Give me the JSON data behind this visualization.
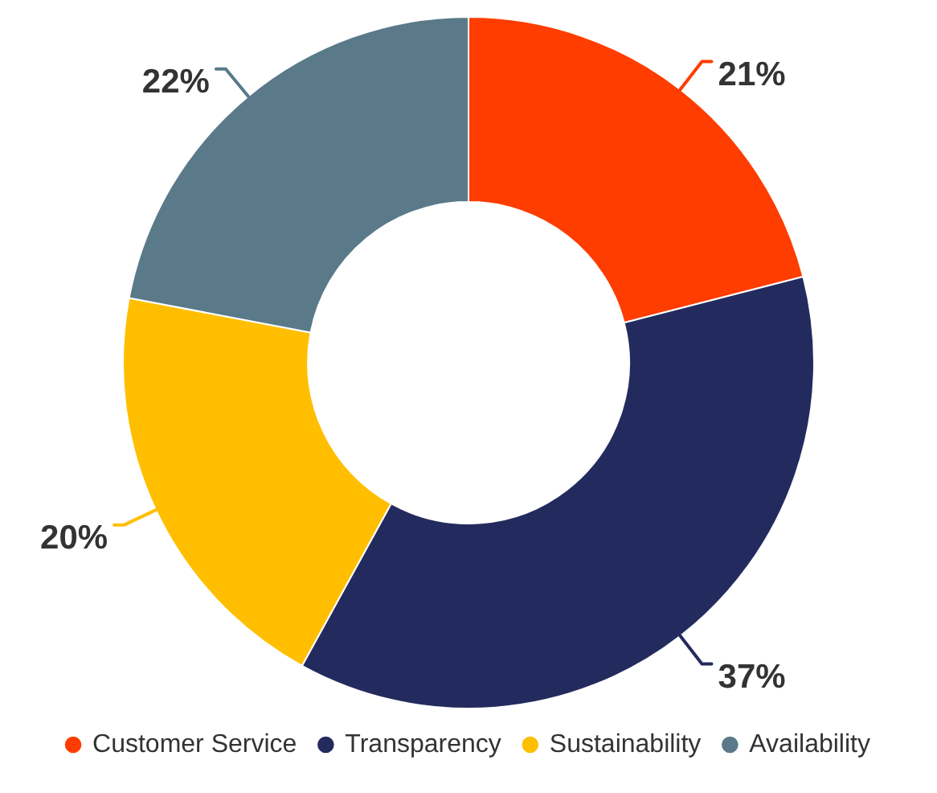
{
  "chart_data": {
    "type": "donut",
    "categories": [
      "Customer Service",
      "Transparency",
      "Sustainability",
      "Availability"
    ],
    "values": [
      21,
      37,
      20,
      22
    ],
    "colors": [
      "#ff3d00",
      "#232b5e",
      "#ffbf00",
      "#5a7a8a"
    ],
    "value_labels": [
      "21%",
      "37%",
      "20%",
      "22%"
    ],
    "legend": "bottom"
  }
}
